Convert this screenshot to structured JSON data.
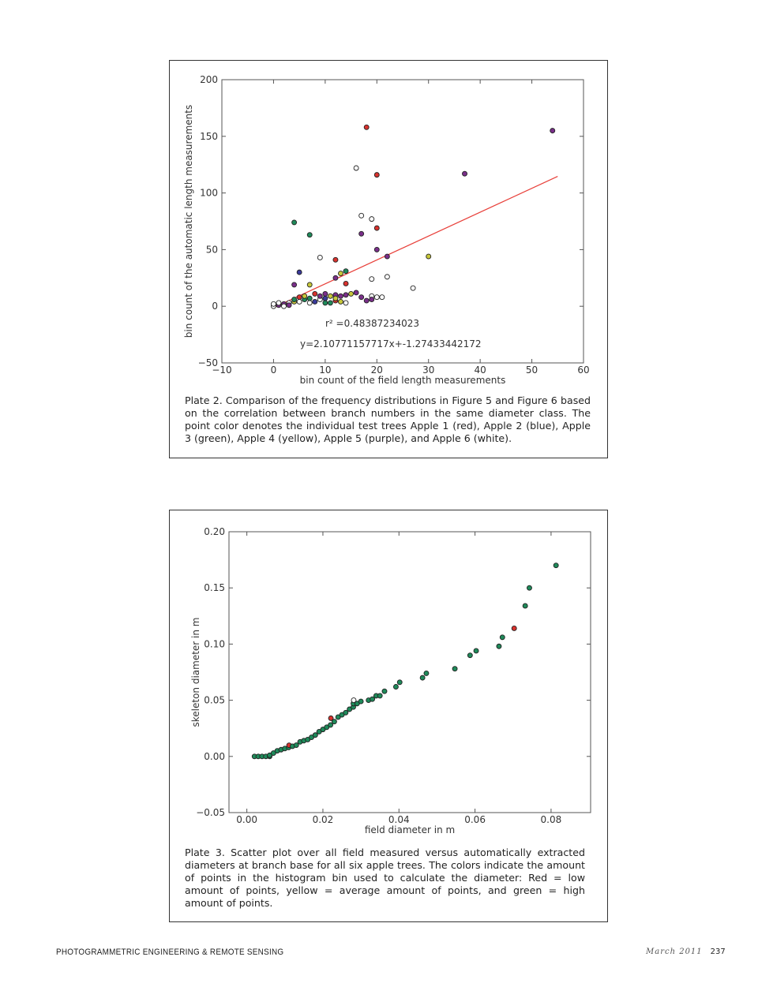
{
  "plates": [
    {
      "caption": "Plate 2. Comparison of the frequency distributions in Figure 5 and Figure 6 based on the correlation between branch numbers in the same diameter class. The point color denotes the individual test trees Apple 1 (red), Apple 2 (blue), Apple 3 (green), Apple 4 (yellow), Apple 5 (purple), and Apple 6 (white)."
    },
    {
      "caption": "Plate 3. Scatter plot over all field measured versus automatically extracted diameters at branch base for all six apple trees. The colors indicate the amount of points in the histogram bin used to calculate the diameter: Red = low amount of points, yellow = average amount of points, and green = high amount of points."
    }
  ],
  "colors": {
    "red": "#d9322e",
    "blue": "#3a3a9a",
    "green": "#1f8a5a",
    "yellow": "#c8c83a",
    "purple": "#7a2f8a",
    "white": "#ffffff",
    "fit_line": "#e8403a"
  },
  "chart_data": [
    {
      "type": "scatter",
      "xlabel": "bin count of the field length measurements",
      "ylabel": "bin count of the automatic length measurements",
      "xlim": [
        -10,
        60
      ],
      "ylim": [
        -50,
        200
      ],
      "xticks": [
        "−10",
        "0",
        "10",
        "20",
        "30",
        "40",
        "50",
        "60"
      ],
      "xtick_values": [
        -10,
        0,
        10,
        20,
        30,
        40,
        50,
        60
      ],
      "yticks": [
        "200",
        "150",
        "100",
        "50",
        "0",
        "−50"
      ],
      "ytick_values": [
        200,
        150,
        100,
        50,
        0,
        -50
      ],
      "legend_series": [
        "Apple 1 (red)",
        "Apple 2 (blue)",
        "Apple 3 (green)",
        "Apple 4 (yellow)",
        "Apple 5 (purple)",
        "Apple 6 (white)"
      ],
      "annotations": [
        "r² =0.48387234023",
        "y=2.10771157717x+-1.27433442172"
      ],
      "fit": {
        "slope": 2.10771157717,
        "intercept": -1.27433442172,
        "x_range": [
          0,
          55
        ]
      },
      "points": [
        [
          18,
          158,
          "red"
        ],
        [
          54,
          155,
          "purple"
        ],
        [
          16,
          122,
          "white"
        ],
        [
          20,
          116,
          "red"
        ],
        [
          37,
          117,
          "purple"
        ],
        [
          4,
          74,
          "green"
        ],
        [
          7,
          63,
          "green"
        ],
        [
          17,
          80,
          "white"
        ],
        [
          19,
          77,
          "white"
        ],
        [
          17,
          64,
          "purple"
        ],
        [
          20,
          69,
          "red"
        ],
        [
          9,
          43,
          "white"
        ],
        [
          12,
          41,
          "red"
        ],
        [
          20,
          50,
          "purple"
        ],
        [
          22,
          44,
          "purple"
        ],
        [
          30,
          44,
          "yellow"
        ],
        [
          5,
          30,
          "blue"
        ],
        [
          13,
          29,
          "yellow"
        ],
        [
          14,
          31,
          "green"
        ],
        [
          12,
          25,
          "purple"
        ],
        [
          14,
          20,
          "red"
        ],
        [
          4,
          19,
          "purple"
        ],
        [
          7,
          19,
          "yellow"
        ],
        [
          19,
          24,
          "white"
        ],
        [
          22,
          26,
          "white"
        ],
        [
          27,
          16,
          "white"
        ],
        [
          0,
          0,
          "white"
        ],
        [
          0,
          2,
          "white"
        ],
        [
          1,
          1,
          "purple"
        ],
        [
          1,
          3,
          "white"
        ],
        [
          2,
          2,
          "purple"
        ],
        [
          2,
          0,
          "white"
        ],
        [
          3,
          3,
          "white"
        ],
        [
          3,
          1,
          "purple"
        ],
        [
          4,
          4,
          "yellow"
        ],
        [
          4,
          6,
          "green"
        ],
        [
          5,
          4,
          "white"
        ],
        [
          5,
          8,
          "red"
        ],
        [
          6,
          6,
          "green"
        ],
        [
          6,
          9,
          "yellow"
        ],
        [
          7,
          3,
          "white"
        ],
        [
          7,
          7,
          "green"
        ],
        [
          8,
          11,
          "red"
        ],
        [
          8,
          4,
          "blue"
        ],
        [
          9,
          6,
          "white"
        ],
        [
          9,
          9,
          "purple"
        ],
        [
          10,
          3,
          "green"
        ],
        [
          10,
          7,
          "blue"
        ],
        [
          11,
          3,
          "green"
        ],
        [
          11,
          9,
          "yellow"
        ],
        [
          12,
          10,
          "purple"
        ],
        [
          12,
          5,
          "red"
        ],
        [
          13,
          4,
          "yellow"
        ],
        [
          13,
          9,
          "purple"
        ],
        [
          14,
          10,
          "purple"
        ],
        [
          14,
          3,
          "white"
        ],
        [
          15,
          11,
          "yellow"
        ],
        [
          16,
          12,
          "purple"
        ],
        [
          17,
          8,
          "purple"
        ],
        [
          18,
          5,
          "purple"
        ],
        [
          19,
          9,
          "white"
        ],
        [
          19,
          6,
          "purple"
        ],
        [
          20,
          8,
          "white"
        ],
        [
          21,
          8,
          "white"
        ],
        [
          12,
          7,
          "yellow"
        ],
        [
          10,
          11,
          "purple"
        ]
      ]
    },
    {
      "type": "scatter",
      "xlabel": "field diameter in m",
      "ylabel": "skeleton diameter in m",
      "xlim": [
        -0.0047,
        0.0904
      ],
      "ylim": [
        -0.05,
        0.2
      ],
      "xticks": [
        "0.00",
        "0.02",
        "0.04",
        "0.06",
        "0.08"
      ],
      "xtick_values": [
        0,
        0.02,
        0.04,
        0.06,
        0.08
      ],
      "yticks": [
        "0.20",
        "0.15",
        "0.10",
        "0.05",
        "0.00",
        "−0.05"
      ],
      "ytick_values": [
        0.2,
        0.15,
        0.1,
        0.05,
        0,
        -0.05
      ],
      "points": [
        [
          0.002,
          0,
          "green"
        ],
        [
          0.003,
          0,
          "green"
        ],
        [
          0.004,
          0,
          "green"
        ],
        [
          0.005,
          0,
          "green"
        ],
        [
          0.006,
          0,
          "green"
        ],
        [
          0.006,
          0.001,
          "green"
        ],
        [
          0.007,
          0.003,
          "green"
        ],
        [
          0.008,
          0.005,
          "green"
        ],
        [
          0.009,
          0.006,
          "green"
        ],
        [
          0.01,
          0.007,
          "green"
        ],
        [
          0.011,
          0.008,
          "green"
        ],
        [
          0.0111,
          0.0099,
          "red"
        ],
        [
          0.012,
          0.009,
          "green"
        ],
        [
          0.013,
          0.01,
          "green"
        ],
        [
          0.014,
          0.013,
          "green"
        ],
        [
          0.015,
          0.014,
          "green"
        ],
        [
          0.016,
          0.015,
          "green"
        ],
        [
          0.017,
          0.017,
          "green"
        ],
        [
          0.018,
          0.019,
          "green"
        ],
        [
          0.019,
          0.022,
          "green"
        ],
        [
          0.02,
          0.024,
          "green"
        ],
        [
          0.021,
          0.026,
          "green"
        ],
        [
          0.022,
          0.028,
          "green"
        ],
        [
          0.023,
          0.031,
          "green"
        ],
        [
          0.0221,
          0.034,
          "red"
        ],
        [
          0.024,
          0.035,
          "green"
        ],
        [
          0.025,
          0.037,
          "green"
        ],
        [
          0.026,
          0.039,
          "green"
        ],
        [
          0.027,
          0.042,
          "green"
        ],
        [
          0.028,
          0.044,
          "green"
        ],
        [
          0.028,
          0.047,
          "green"
        ],
        [
          0.0281,
          0.05,
          "white"
        ],
        [
          0.029,
          0.047,
          "green"
        ],
        [
          0.03,
          0.049,
          "green"
        ],
        [
          0.032,
          0.05,
          "green"
        ],
        [
          0.033,
          0.051,
          "green"
        ],
        [
          0.034,
          0.054,
          "green"
        ],
        [
          0.035,
          0.054,
          "green"
        ],
        [
          0.0362,
          0.058,
          "green"
        ],
        [
          0.0392,
          0.062,
          "green"
        ],
        [
          0.0402,
          0.066,
          "green"
        ],
        [
          0.0462,
          0.07,
          "green"
        ],
        [
          0.0472,
          0.074,
          "green"
        ],
        [
          0.0547,
          0.078,
          "green"
        ],
        [
          0.0587,
          0.09,
          "green"
        ],
        [
          0.0603,
          0.094,
          "green"
        ],
        [
          0.0663,
          0.098,
          "green"
        ],
        [
          0.0672,
          0.106,
          "green"
        ],
        [
          0.0703,
          0.114,
          "red"
        ],
        [
          0.0732,
          0.134,
          "green"
        ],
        [
          0.0743,
          0.15,
          "green"
        ],
        [
          0.0813,
          0.17,
          "green"
        ]
      ]
    }
  ],
  "footer": {
    "journal": "PHOTOGRAMMETRIC ENGINEERING & REMOTE SENSING",
    "date": "March 2011",
    "page": "237"
  }
}
